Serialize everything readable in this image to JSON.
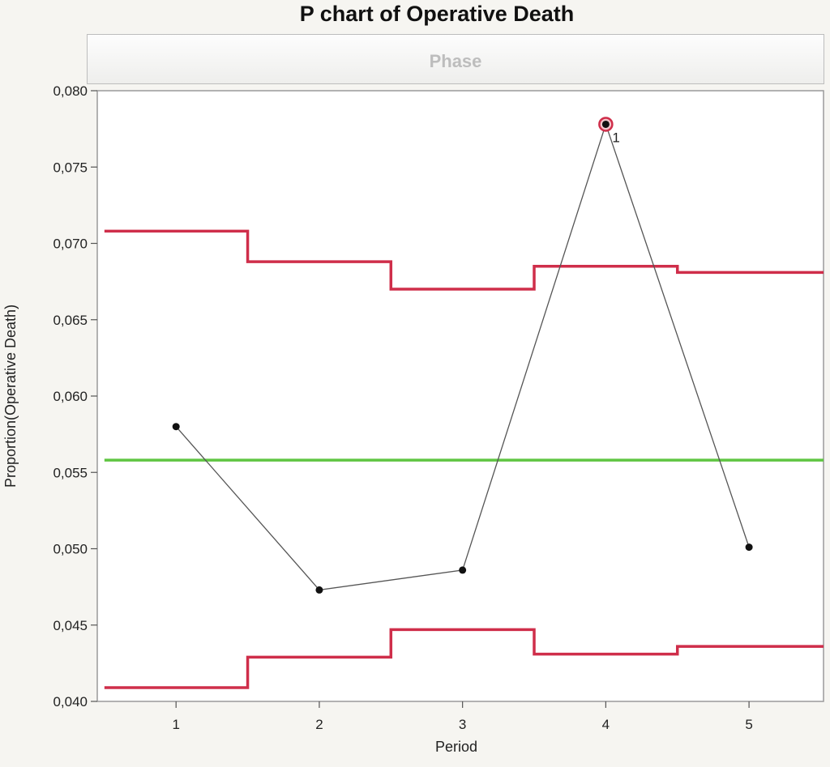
{
  "chart_data": {
    "type": "line",
    "title": "P chart of Operative Death",
    "phase_label": "Phase",
    "xlabel": "Period",
    "ylabel": "Proportion(Operative Death)",
    "x": [
      1,
      2,
      3,
      4,
      5
    ],
    "xlim": [
      0.45,
      5.52
    ],
    "ylim": [
      0.04,
      0.08
    ],
    "yticks": [
      "0,040",
      "0,045",
      "0,050",
      "0,055",
      "0,060",
      "0,065",
      "0,070",
      "0,075",
      "0,080"
    ],
    "ytick_values": [
      0.04,
      0.045,
      0.05,
      0.055,
      0.06,
      0.065,
      0.07,
      0.075,
      0.08
    ],
    "series": [
      {
        "values": [
          0.058,
          0.0473,
          0.0486,
          0.0778,
          0.0501
        ],
        "color": "#111111"
      }
    ],
    "center_line": {
      "value": 0.0558,
      "color": "#5fc542"
    },
    "ucl": {
      "values": [
        0.0708,
        0.0688,
        0.067,
        0.0685,
        0.0681
      ],
      "color": "#cf2e4a"
    },
    "lcl": {
      "values": [
        0.0409,
        0.0429,
        0.0447,
        0.0431,
        0.0436
      ],
      "color": "#cf2e4a"
    },
    "flagged_points": [
      {
        "x": 4,
        "label": "1"
      }
    ],
    "grid": false,
    "legend": "none"
  }
}
